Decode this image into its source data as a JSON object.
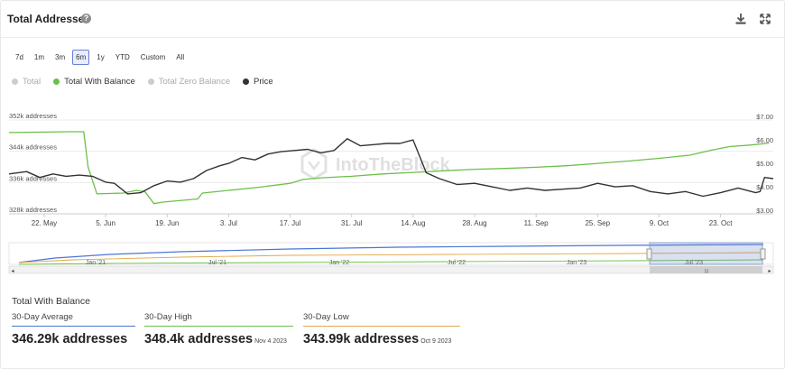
{
  "header": {
    "title": "Total Addresses",
    "help_glyph": "?"
  },
  "ranges": [
    {
      "label": "7d",
      "active": false
    },
    {
      "label": "1m",
      "active": false
    },
    {
      "label": "3m",
      "active": false
    },
    {
      "label": "6m",
      "active": true
    },
    {
      "label": "1y",
      "active": false
    },
    {
      "label": "YTD",
      "active": false
    },
    {
      "label": "Custom",
      "active": false
    },
    {
      "label": "All",
      "active": false
    }
  ],
  "legend": [
    {
      "label": "Total",
      "color": "#cccccc",
      "enabled": false
    },
    {
      "label": "Total With Balance",
      "color": "#6cc04a",
      "enabled": true
    },
    {
      "label": "Total Zero Balance",
      "color": "#cccccc",
      "enabled": false
    },
    {
      "label": "Price",
      "color": "#333333",
      "enabled": true
    }
  ],
  "watermark": "IntoTheBlock",
  "chart_data": {
    "type": "line",
    "x_tick_labels": [
      "22. May",
      "5. Jun",
      "19. Jun",
      "3. Jul",
      "17. Jul",
      "31. Jul",
      "14. Aug",
      "28. Aug",
      "11. Sep",
      "25. Sep",
      "9. Oct",
      "23. Oct"
    ],
    "left_axis_labels": [
      "352k addresses",
      "344k addresses",
      "336k addresses",
      "328k addresses"
    ],
    "right_axis_labels": [
      "$7.00",
      "$6.00",
      "$5.00",
      "$4.00",
      "$3.00"
    ],
    "ylim_left": [
      328000,
      352000
    ],
    "ylim_right": [
      3,
      7
    ],
    "grid": true,
    "series": [
      {
        "name": "Total With Balance",
        "axis": "left",
        "color": "#6cc04a",
        "x": [
          "2023-05-14",
          "2023-05-28",
          "2023-05-31",
          "2023-06-01",
          "2023-06-03",
          "2023-06-09",
          "2023-06-12",
          "2023-06-14",
          "2023-06-16",
          "2023-06-18",
          "2023-06-26",
          "2023-06-27",
          "2023-07-03",
          "2023-07-10",
          "2023-07-17",
          "2023-07-20",
          "2023-07-24",
          "2023-07-31",
          "2023-08-07",
          "2023-08-14",
          "2023-08-21",
          "2023-08-28",
          "2023-09-04",
          "2023-09-11",
          "2023-09-18",
          "2023-09-25",
          "2023-10-02",
          "2023-10-09",
          "2023-10-16",
          "2023-10-21",
          "2023-10-25",
          "2023-10-30",
          "2023-11-03"
        ],
        "values": [
          348.8,
          349.0,
          349.0,
          340.0,
          333.1,
          333.3,
          334.0,
          333.6,
          330.6,
          331.0,
          331.8,
          333.3,
          334.0,
          334.8,
          335.8,
          336.8,
          337.2,
          337.6,
          338.2,
          338.6,
          339.0,
          339.4,
          339.6,
          339.9,
          340.3,
          340.9,
          341.5,
          342.2,
          343.0,
          344.3,
          345.2,
          345.6,
          346.1
        ]
      },
      {
        "name": "Price",
        "axis": "right",
        "color": "#333333",
        "x": [
          "2023-05-14",
          "2023-05-18",
          "2023-05-21",
          "2023-05-24",
          "2023-05-27",
          "2023-05-30",
          "2023-06-02",
          "2023-06-05",
          "2023-06-07",
          "2023-06-10",
          "2023-06-13",
          "2023-06-16",
          "2023-06-19",
          "2023-06-22",
          "2023-06-25",
          "2023-06-28",
          "2023-07-01",
          "2023-07-03",
          "2023-07-06",
          "2023-07-09",
          "2023-07-12",
          "2023-07-15",
          "2023-07-18",
          "2023-07-21",
          "2023-07-24",
          "2023-07-27",
          "2023-07-30",
          "2023-08-02",
          "2023-08-05",
          "2023-08-08",
          "2023-08-11",
          "2023-08-14",
          "2023-08-17",
          "2023-08-20",
          "2023-08-24",
          "2023-08-28",
          "2023-09-01",
          "2023-09-05",
          "2023-09-09",
          "2023-09-13",
          "2023-09-17",
          "2023-09-21",
          "2023-09-25",
          "2023-09-29",
          "2023-10-03",
          "2023-10-07",
          "2023-10-11",
          "2023-10-15",
          "2023-10-19",
          "2023-10-23",
          "2023-10-27",
          "2023-10-31",
          "2023-11-01",
          "2023-11-02",
          "2023-11-04"
        ],
        "values": [
          4.7,
          4.8,
          4.55,
          4.7,
          4.6,
          4.65,
          4.6,
          4.35,
          4.3,
          3.85,
          3.9,
          4.2,
          4.4,
          4.35,
          4.5,
          4.85,
          5.05,
          5.15,
          5.4,
          5.3,
          5.55,
          5.65,
          5.7,
          5.75,
          5.6,
          5.7,
          6.2,
          5.9,
          5.95,
          6.0,
          6.0,
          6.15,
          4.75,
          4.5,
          4.25,
          4.3,
          4.15,
          4.0,
          4.1,
          4.0,
          4.05,
          4.1,
          4.3,
          4.15,
          4.2,
          3.95,
          3.85,
          3.95,
          3.75,
          3.9,
          4.1,
          3.9,
          3.95,
          4.55,
          4.5
        ]
      }
    ]
  },
  "navigator": {
    "tick_labels": [
      "Jan '21",
      "Jul '21",
      "Jan '22",
      "Jul '22",
      "Jan '23",
      "Jul '23"
    ],
    "series_colors": [
      "#4a76d4",
      "#6cc04a",
      "#e0a84a"
    ]
  },
  "stats": {
    "title": "Total With Balance",
    "avg": {
      "label": "30-Day Average",
      "value": "346.29k addresses",
      "color": "#4a76d4"
    },
    "high": {
      "label": "30-Day High",
      "value": "348.4k addresses",
      "date": "Nov 4 2023",
      "color": "#6cc04a"
    },
    "low": {
      "label": "30-Day Low",
      "value": "343.99k addresses",
      "date": "Oct 9 2023",
      "color": "#e0a84a"
    }
  }
}
